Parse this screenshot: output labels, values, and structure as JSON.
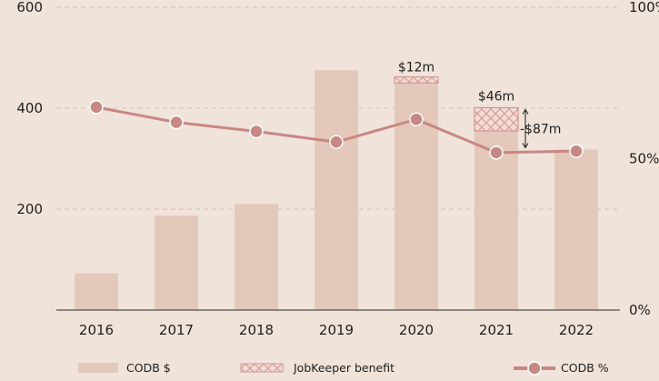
{
  "chart_data": {
    "type": "bar",
    "title": "",
    "xlabel": "",
    "ylabel": "",
    "categories": [
      "2016",
      "2017",
      "2018",
      "2019",
      "2020",
      "2021",
      "2022"
    ],
    "ylim": [
      0,
      600
    ],
    "y_ticks": [
      "200",
      "400",
      "600"
    ],
    "y2lim": [
      0,
      100
    ],
    "y2_ticks": [
      "0%",
      "50%",
      "100%"
    ],
    "grid": true,
    "legend_position": "bottom",
    "series": [
      {
        "name": "CODB $",
        "type": "bar",
        "axis": "left",
        "color": "#e4c8b9",
        "values": [
          73,
          187,
          210,
          475,
          450,
          355,
          318
        ]
      },
      {
        "name": "JobKeeper benefit",
        "type": "bar-stacked",
        "axis": "left",
        "color": "#d7a09b",
        "values": [
          0,
          0,
          0,
          0,
          12,
          46,
          0
        ]
      },
      {
        "name": "CODB %",
        "type": "line",
        "axis": "right",
        "color": "#c88782",
        "values": [
          67,
          62,
          59,
          55.5,
          63,
          52,
          52.5
        ]
      }
    ],
    "annotations": [
      {
        "category": "2020",
        "text": "$12m"
      },
      {
        "category": "2021",
        "text": "$46m"
      },
      {
        "category": "2021",
        "text": "-$87m"
      }
    ]
  }
}
